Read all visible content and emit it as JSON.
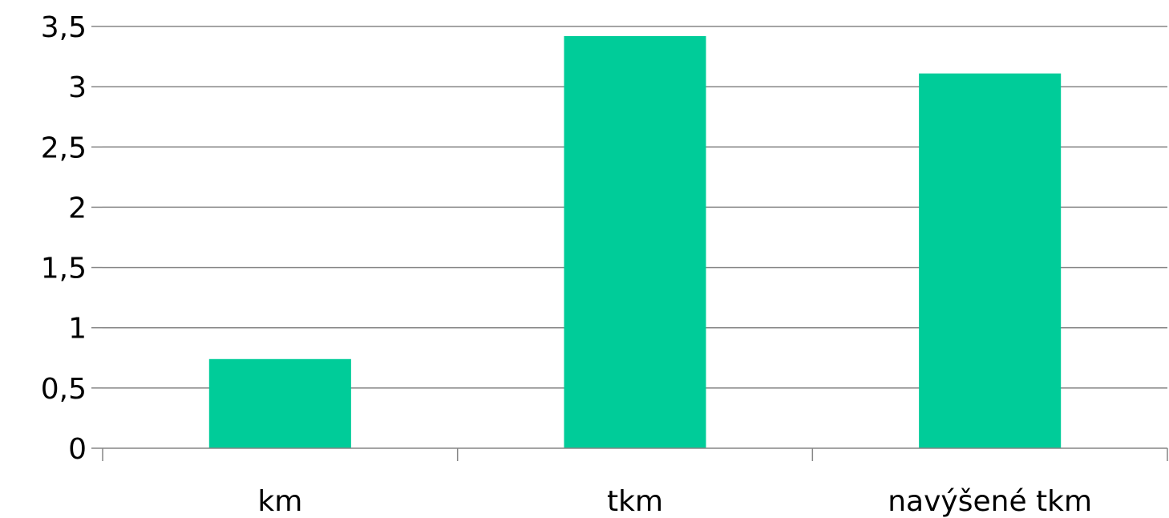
{
  "chart_data": {
    "type": "bar",
    "categories": [
      "km",
      "tkm",
      "navýšené tkm"
    ],
    "values": [
      0.74,
      3.42,
      3.11
    ],
    "title": "",
    "xlabel": "",
    "ylabel": "",
    "ylim": [
      0,
      3.5
    ],
    "yticks": [
      0,
      0.5,
      1,
      1.5,
      2,
      2.5,
      3,
      3.5
    ],
    "ytick_labels": [
      "0",
      "0,5",
      "1",
      "1,5",
      "2",
      "2,5",
      "3",
      "3,5"
    ],
    "grid": true,
    "legend": "none",
    "bar_color": "#00CC99"
  }
}
